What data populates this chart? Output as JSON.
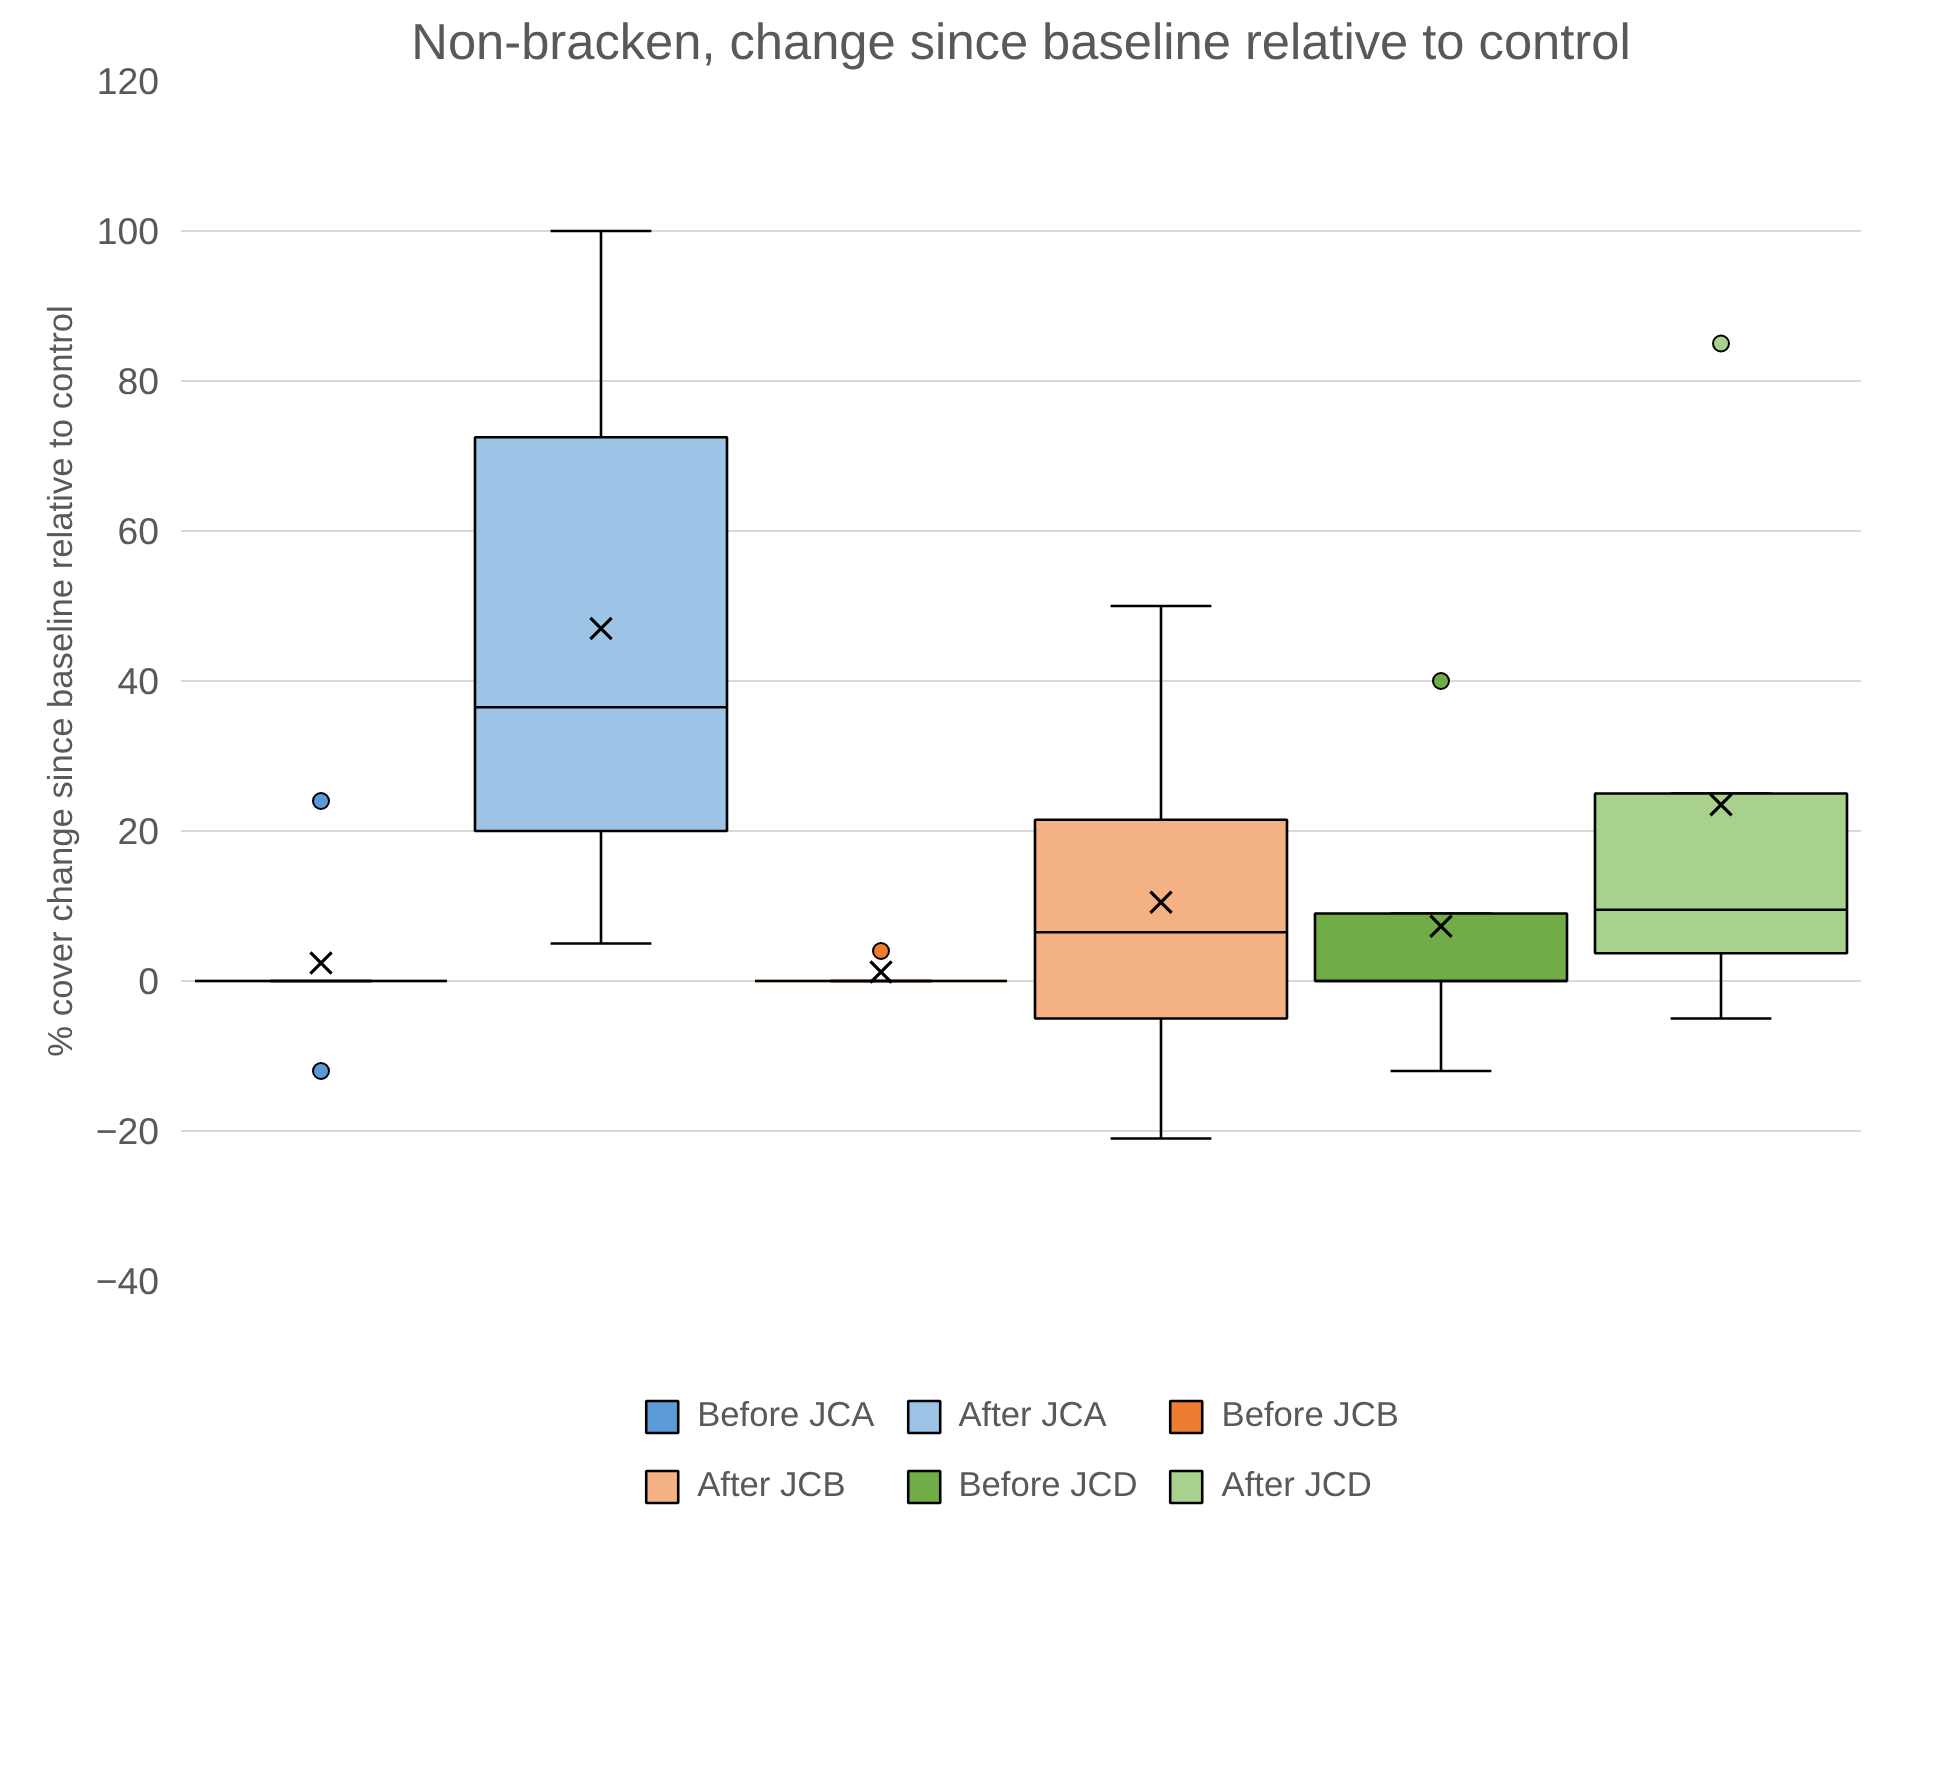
{
  "chart_data": {
    "type": "box",
    "title": "Non-bracken, change since baseline relative to control",
    "ylabel": "% cover change since baseline relative to control",
    "categories": [
      null
    ],
    "series": [
      {
        "name": "Before JCA",
        "color": "#5b9bd5",
        "boxes": [
          {
            "low": 0,
            "q1": 0,
            "median": 0,
            "q3": 0,
            "high": 0,
            "mean": 2.4,
            "outliers": [
              24,
              -12
            ]
          }
        ]
      },
      {
        "name": "After JCA",
        "color": "#9dc3e6",
        "boxes": [
          {
            "low": 5,
            "q1": 20,
            "median": 36.5,
            "q3": 72.5,
            "high": 100,
            "mean": 47
          }
        ]
      },
      {
        "name": "Before JCB",
        "color": "#ed7d31",
        "boxes": [
          {
            "low": 0,
            "q1": 0,
            "median": 0,
            "q3": 0,
            "high": 0,
            "mean": 1.2,
            "outliers": [
              4
            ]
          }
        ]
      },
      {
        "name": "After JCB",
        "color": "#f4b183",
        "boxes": [
          {
            "low": -21,
            "q1": -5,
            "median": 6.5,
            "q3": 21.5,
            "high": 50,
            "mean": 10.5
          }
        ]
      },
      {
        "name": "Before JCD",
        "color": "#70ad47",
        "boxes": [
          {
            "low": -12,
            "q1": 0,
            "median": 0,
            "q3": 9,
            "high": 9,
            "mean": 7.3,
            "outliers": [
              40
            ]
          }
        ]
      },
      {
        "name": "After JCD",
        "color": "#a9d18e",
        "boxes": [
          {
            "low": -5,
            "q1": 3.7,
            "median": 9.5,
            "q3": 25,
            "high": 25,
            "mean": 23.5,
            "outliers": [
              85
            ]
          }
        ]
      }
    ],
    "ylim": [
      -40,
      120
    ],
    "yticks": [
      -40,
      -20,
      0,
      20,
      40,
      60,
      80,
      100,
      120
    ],
    "grid": "y",
    "legend": "bottom"
  }
}
